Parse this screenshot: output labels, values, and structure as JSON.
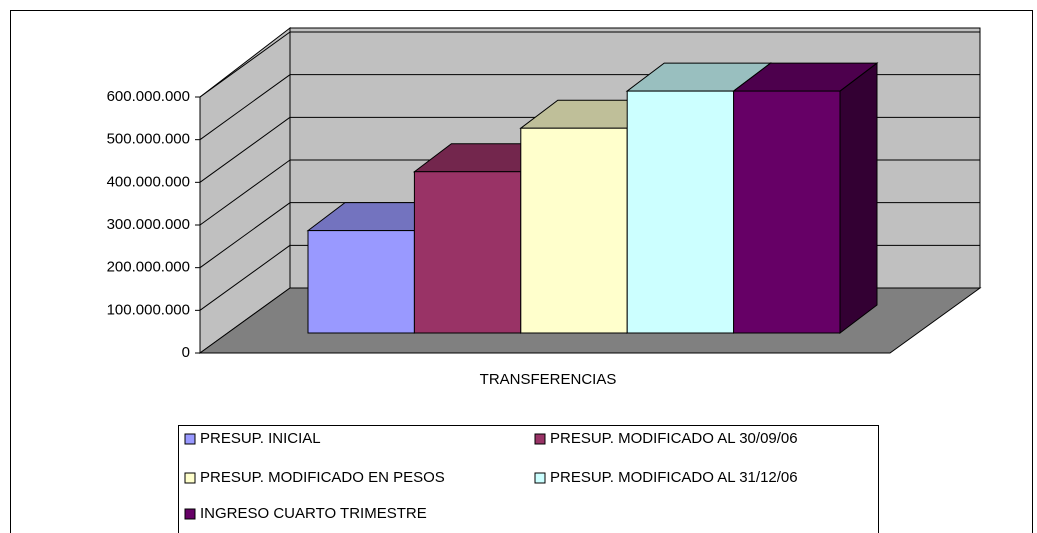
{
  "chart_data": {
    "type": "bar3d",
    "categories": [
      "TRANSFERENCIAS"
    ],
    "series": [
      {
        "name": "PRESUP. INICIAL",
        "color": "#9999ff",
        "values": [
          240000000
        ]
      },
      {
        "name": "PRESUP. MODIFICADO AL 30/09/06",
        "color": "#993366",
        "values": [
          378000000
        ]
      },
      {
        "name": "PRESUP. MODIFICADO EN PESOS",
        "color": "#ffffcc",
        "values": [
          480000000
        ]
      },
      {
        "name": "PRESUP. MODIFICADO AL 31/12/06",
        "color": "#ccffff",
        "values": [
          567000000
        ]
      },
      {
        "name": "INGRESO CUARTO TRIMESTRE",
        "color": "#660066",
        "values": [
          567000000
        ]
      }
    ],
    "ylim": [
      0,
      600000000
    ],
    "yticks": [
      0,
      {
        "value": 100000000,
        "label": "100.000.000"
      },
      {
        "value": 200000000,
        "label": "200.000.000"
      },
      {
        "value": 300000000,
        "label": "300.000.000"
      },
      {
        "value": 400000000,
        "label": "400.000.000"
      },
      {
        "value": 500000000,
        "label": "500.000.000"
      },
      {
        "value": 600000000,
        "label": "600.000.000"
      }
    ],
    "grid": true
  }
}
